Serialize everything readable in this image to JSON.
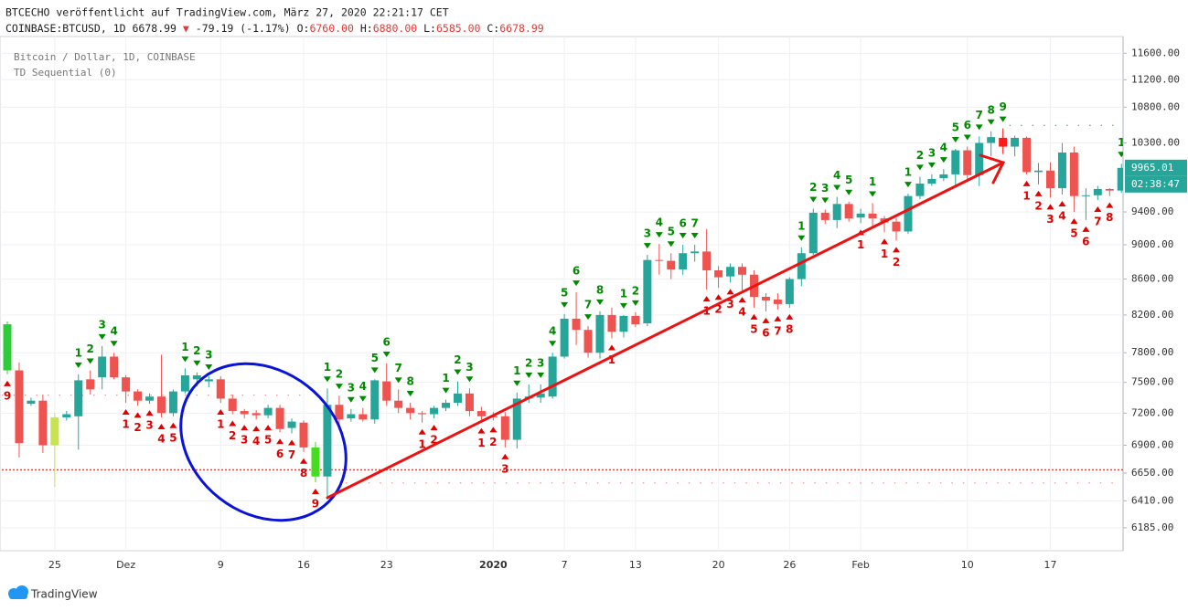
{
  "header": {
    "title": "BTCECHO veröffentlicht auf TradingView.com, März 27, 2020 22:21:17 CET",
    "symbol": "COINBASE:BTCUSD, 1D",
    "last": "6678.99",
    "arrow": "▼",
    "change": "-79.19 (-1.17%)",
    "ohlc": [
      {
        "label": "O:",
        "value": "6760.00"
      },
      {
        "label": "H:",
        "value": "6880.00"
      },
      {
        "label": "L:",
        "value": "6585.00"
      },
      {
        "label": "C:",
        "value": "6678.99"
      }
    ]
  },
  "chart_data": {
    "type": "candlestick",
    "log": true,
    "grid": true,
    "ylim": [
      6000,
      11860
    ],
    "yticks": [
      {
        "value": 11600,
        "label": "11600.00"
      },
      {
        "value": 11200,
        "label": "11200.00"
      },
      {
        "value": 10800,
        "label": "10800.00"
      },
      {
        "value": 10300,
        "label": "10300.00"
      },
      {
        "value": 9400,
        "label": "9400.00"
      },
      {
        "value": 9000,
        "label": "9000.00"
      },
      {
        "value": 8600,
        "label": "8600.00"
      },
      {
        "value": 8200,
        "label": "8200.00"
      },
      {
        "value": 7800,
        "label": "7800.00"
      },
      {
        "value": 7500,
        "label": "7500.00"
      },
      {
        "value": 7200,
        "label": "7200.00"
      },
      {
        "value": 6900,
        "label": "6900.00"
      },
      {
        "value": 6650,
        "label": "6650.00"
      },
      {
        "value": 6410,
        "label": "6410.00"
      },
      {
        "value": 6185,
        "label": "6185.00"
      }
    ],
    "categories": [
      null,
      null,
      null,
      null,
      "25",
      null,
      null,
      null,
      null,
      null,
      "Dez",
      null,
      null,
      null,
      null,
      null,
      null,
      null,
      "9",
      null,
      null,
      null,
      null,
      null,
      null,
      "16",
      null,
      null,
      null,
      null,
      null,
      null,
      "23",
      null,
      null,
      null,
      null,
      null,
      null,
      null,
      null,
      "2020",
      null,
      null,
      null,
      null,
      null,
      "7",
      null,
      null,
      null,
      null,
      null,
      "13",
      null,
      null,
      null,
      null,
      null,
      null,
      "20",
      null,
      null,
      null,
      null,
      null,
      "26",
      null,
      null,
      null,
      null,
      null,
      "Feb",
      null,
      null,
      null,
      null,
      null,
      null,
      null,
      null,
      "10",
      null,
      null,
      null,
      null,
      null,
      null,
      "17",
      null,
      null,
      null,
      null,
      null,
      null
    ],
    "series": [
      {
        "name": "Bitcoin / Dollar, 1D, COINBASE",
        "up_color": "#26a69a",
        "down_color": "#ef5350",
        "open": [
          8100,
          7620,
          7290,
          7320,
          6900,
          7160,
          7170,
          7530,
          7550,
          7760,
          7550,
          7410,
          7320,
          7360,
          7200,
          7410,
          7530,
          7510,
          7530,
          7340,
          7220,
          7200,
          7180,
          7250,
          7060,
          7110,
          6880,
          6620,
          7280,
          7150,
          7190,
          7140,
          7510,
          7320,
          7250,
          7200,
          7190,
          7250,
          7300,
          7390,
          7220,
          7170,
          7170,
          6950,
          7340,
          7350,
          7360,
          7760,
          8160,
          8040,
          7800,
          8200,
          8020,
          8190,
          8110,
          8820,
          8810,
          8710,
          8900,
          8920,
          8700,
          8630,
          8740,
          8650,
          8400,
          8370,
          8320,
          8600,
          8900,
          9390,
          9300,
          9500,
          9330,
          9380,
          9320,
          9280,
          9160,
          9600,
          9760,
          9830,
          9880,
          10200,
          9870,
          10300,
          10370,
          10250,
          10370,
          9910,
          9930,
          9700,
          10170,
          9600,
          9610,
          9690,
          9670
        ],
        "high": [
          8130,
          7700,
          7350,
          7380,
          7200,
          7220,
          7580,
          7620,
          7870,
          7800,
          7570,
          7430,
          7390,
          7780,
          7430,
          7640,
          7600,
          7560,
          7560,
          7380,
          7240,
          7230,
          7280,
          7280,
          7150,
          7130,
          6930,
          7440,
          7370,
          7240,
          7250,
          7530,
          7690,
          7430,
          7300,
          7220,
          7270,
          7330,
          7510,
          7440,
          7260,
          7210,
          7210,
          7400,
          7480,
          7480,
          7800,
          8210,
          8450,
          8080,
          8240,
          8280,
          8200,
          8230,
          8880,
          9010,
          8900,
          9000,
          9000,
          9190,
          8750,
          8780,
          8780,
          8700,
          8440,
          8440,
          8620,
          8970,
          9440,
          9430,
          9590,
          9530,
          9440,
          9510,
          9350,
          9330,
          9630,
          9850,
          9880,
          9950,
          10220,
          10250,
          10390,
          10460,
          10500,
          10400,
          10390,
          10030,
          10040,
          10300,
          10250,
          9700,
          9730,
          9700,
          10020
        ],
        "low": [
          7580,
          6790,
          7270,
          6830,
          6530,
          7130,
          6860,
          7380,
          7430,
          7530,
          7300,
          7270,
          7290,
          7160,
          7170,
          7390,
          7460,
          7450,
          7300,
          7190,
          7150,
          7140,
          7150,
          7020,
          7010,
          6840,
          6570,
          6430,
          7040,
          7120,
          7120,
          7100,
          7270,
          7200,
          7140,
          7110,
          7150,
          7220,
          7270,
          7170,
          7120,
          7130,
          6880,
          6870,
          7300,
          7300,
          7340,
          7740,
          7880,
          7750,
          7740,
          7950,
          7960,
          8070,
          8080,
          8650,
          8600,
          8650,
          8800,
          8480,
          8500,
          8560,
          8470,
          8280,
          8240,
          8260,
          8280,
          8520,
          8880,
          9250,
          9200,
          9280,
          9260,
          9220,
          9150,
          9050,
          9130,
          9560,
          9730,
          9790,
          9740,
          9820,
          9730,
          10120,
          10150,
          10120,
          9880,
          9750,
          9580,
          9620,
          9400,
          9300,
          9550,
          9600,
          9640
        ],
        "close": [
          7620,
          6920,
          7320,
          6900,
          7160,
          7190,
          7520,
          7430,
          7760,
          7550,
          7410,
          7320,
          7360,
          7200,
          7410,
          7570,
          7570,
          7530,
          7340,
          7220,
          7190,
          7180,
          7250,
          7050,
          7120,
          6880,
          6620,
          7280,
          7140,
          7190,
          7140,
          7520,
          7320,
          7250,
          7200,
          7190,
          7250,
          7300,
          7390,
          7220,
          7170,
          7160,
          6950,
          7340,
          7360,
          7390,
          7760,
          8160,
          8040,
          7800,
          8200,
          8020,
          8190,
          8100,
          8820,
          8810,
          8710,
          8900,
          8920,
          8700,
          8620,
          8740,
          8650,
          8400,
          8360,
          8320,
          8600,
          8900,
          9390,
          9300,
          9500,
          9320,
          9380,
          9320,
          9270,
          9160,
          9600,
          9760,
          9820,
          9880,
          10200,
          9870,
          10300,
          10380,
          10250,
          10370,
          9910,
          9930,
          9700,
          10170,
          9600,
          9610,
          9690,
          9670,
          9965.01
        ],
        "highlight": [
          "#2fcc3a",
          null,
          null,
          null,
          "#c8e34f",
          null,
          null,
          null,
          null,
          null,
          null,
          null,
          null,
          null,
          null,
          null,
          null,
          null,
          null,
          null,
          null,
          null,
          null,
          null,
          null,
          null,
          "#44dd22",
          null,
          null,
          null,
          null,
          null,
          null,
          null,
          null,
          null,
          null,
          null,
          null,
          null,
          null,
          null,
          null,
          null,
          null,
          null,
          null,
          null,
          null,
          null,
          null,
          null,
          null,
          null,
          null,
          null,
          null,
          null,
          null,
          null,
          null,
          null,
          null,
          null,
          null,
          null,
          null,
          null,
          null,
          null,
          null,
          null,
          null,
          null,
          null,
          null,
          null,
          null,
          null,
          null,
          null,
          null,
          null,
          null,
          "#ff1a1a",
          null,
          null,
          null,
          null,
          null,
          null,
          null,
          null,
          null,
          null
        ]
      }
    ],
    "indicator": {
      "name": "TD Sequential (0)",
      "sell_color": "#008a00",
      "buy_color": "#e00000",
      "sell": [
        null,
        null,
        null,
        null,
        null,
        null,
        1,
        2,
        3,
        4,
        null,
        null,
        null,
        null,
        null,
        1,
        2,
        3,
        null,
        null,
        null,
        null,
        null,
        null,
        null,
        null,
        null,
        1,
        2,
        3,
        4,
        5,
        6,
        7,
        8,
        null,
        null,
        1,
        2,
        3,
        null,
        null,
        null,
        1,
        2,
        3,
        4,
        5,
        6,
        7,
        8,
        null,
        1,
        2,
        3,
        4,
        5,
        6,
        7,
        null,
        null,
        null,
        null,
        null,
        null,
        null,
        null,
        1,
        2,
        3,
        4,
        5,
        null,
        1,
        null,
        null,
        1,
        2,
        3,
        4,
        5,
        6,
        7,
        8,
        9,
        null,
        null,
        null,
        null,
        null,
        null,
        null,
        null,
        null,
        1
      ],
      "buy": [
        9,
        null,
        null,
        null,
        null,
        null,
        null,
        null,
        null,
        null,
        1,
        2,
        3,
        4,
        5,
        null,
        null,
        null,
        1,
        2,
        3,
        4,
        5,
        6,
        7,
        8,
        9,
        null,
        null,
        null,
        null,
        null,
        null,
        null,
        null,
        1,
        2,
        null,
        null,
        null,
        1,
        2,
        3,
        null,
        null,
        null,
        null,
        null,
        null,
        null,
        null,
        1,
        null,
        null,
        null,
        null,
        null,
        null,
        null,
        1,
        2,
        3,
        4,
        5,
        6,
        7,
        8,
        null,
        null,
        null,
        null,
        null,
        1,
        null,
        1,
        2,
        null,
        null,
        null,
        null,
        null,
        null,
        null,
        null,
        null,
        null,
        1,
        2,
        3,
        4,
        5,
        6,
        7,
        8,
        null
      ]
    },
    "lines": [
      {
        "value": 6678.99,
        "color": "#e53935",
        "from": 0,
        "to": 94
      },
      {
        "value": 7374,
        "color": "#ef9a9a",
        "from": 0,
        "to": 25
      },
      {
        "value": 6564,
        "color": "#ef9a9a",
        "from": 29,
        "to": 94
      },
      {
        "value": 10542,
        "color": "#66bb6a",
        "from": 85,
        "to": 94
      }
    ],
    "countdown": "02:38:47"
  },
  "footer": {
    "brand": "TradingView"
  }
}
